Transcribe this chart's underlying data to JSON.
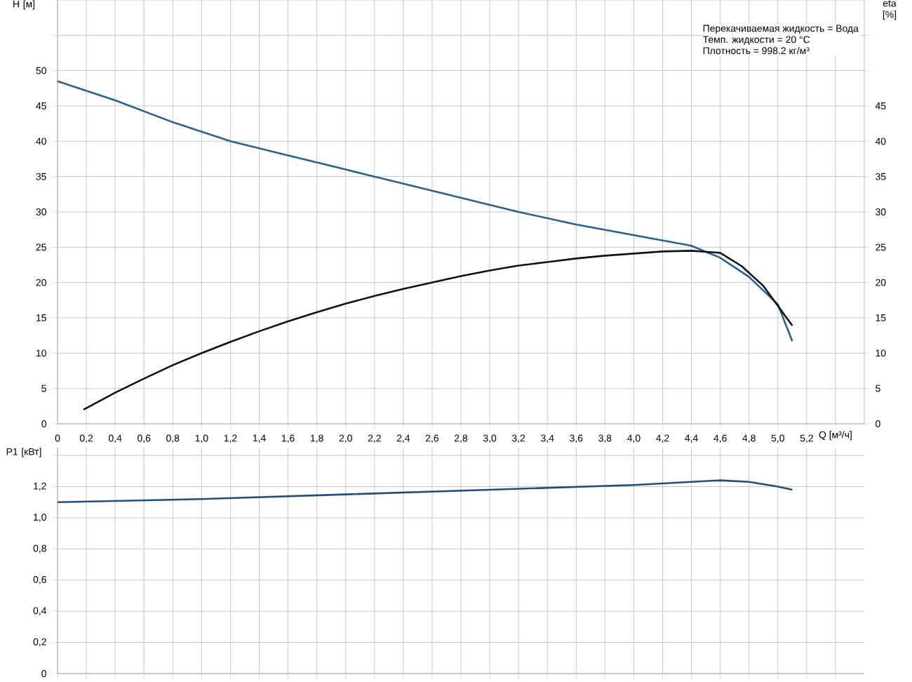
{
  "chart_data": [
    {
      "type": "line",
      "ylabel": "H [м]",
      "y2label": "eta [%]",
      "xlabel": "Q [м³/ч]",
      "annotations": [
        "Перекачиваемая жидкость = Вода",
        "Темп. жидкости = 20 °C",
        "Плотность = 998.2 кг/м³"
      ],
      "xlim": [
        0,
        5.6
      ],
      "xticks": [
        0,
        {
          "value": 0.2,
          "label": "0,2"
        },
        {
          "value": 0.4,
          "label": "0,4"
        },
        {
          "value": 0.6,
          "label": "0,6"
        },
        {
          "value": 0.8,
          "label": "0,8"
        },
        {
          "value": 1.0,
          "label": "1,0"
        },
        {
          "value": 1.2,
          "label": "1,2"
        },
        {
          "value": 1.4,
          "label": "1,4"
        },
        {
          "value": 1.6,
          "label": "1,6"
        },
        {
          "value": 1.8,
          "label": "1,8"
        },
        {
          "value": 2.0,
          "label": "2,0"
        },
        {
          "value": 2.2,
          "label": "2,2"
        },
        {
          "value": 2.4,
          "label": "2,4"
        },
        {
          "value": 2.6,
          "label": "2,6"
        },
        {
          "value": 2.8,
          "label": "2,8"
        },
        {
          "value": 3.0,
          "label": "3,0"
        },
        {
          "value": 3.2,
          "label": "3,2"
        },
        {
          "value": 3.4,
          "label": "3,4"
        },
        {
          "value": 3.6,
          "label": "3,6"
        },
        {
          "value": 3.8,
          "label": "3,8"
        },
        {
          "value": 4.0,
          "label": "4,0"
        },
        {
          "value": 4.2,
          "label": "4,2"
        },
        {
          "value": 4.4,
          "label": "4,4"
        },
        {
          "value": 4.6,
          "label": "4,6"
        },
        {
          "value": 4.8,
          "label": "4,8"
        },
        {
          "value": 5.0,
          "label": "5,0"
        },
        {
          "value": 5.2,
          "label": "5,2"
        },
        {
          "value": 5.4,
          "label": null
        }
      ],
      "ylim": [
        0,
        60
      ],
      "yticks": [
        0,
        5,
        10,
        15,
        20,
        25,
        30,
        35,
        40,
        45,
        50,
        {
          "value": 55,
          "label": null
        },
        {
          "value": 60,
          "label": null
        }
      ],
      "y2lim": [
        0,
        60
      ],
      "y2ticks": [
        0,
        5,
        10,
        15,
        20,
        25,
        30,
        35,
        40,
        45,
        {
          "value": 50,
          "label": null
        },
        {
          "value": 55,
          "label": null
        },
        {
          "value": 60,
          "label": null
        }
      ],
      "grid": true,
      "series": [
        {
          "color": "#2b5f8e",
          "x": [
            0,
            0.4,
            0.8,
            1.2,
            1.6,
            2.0,
            2.2,
            2.6,
            3.0,
            3.2,
            3.6,
            4.0,
            4.4,
            4.6,
            4.8,
            5.0,
            5.1
          ],
          "values": [
            48.5,
            45.8,
            42.7,
            40,
            38,
            36,
            35,
            33,
            31,
            30,
            28.2,
            26.7,
            25.2,
            23.5,
            20.8,
            16.9,
            11.7
          ]
        },
        {
          "color": "#111111",
          "axis": "y2",
          "x": [
            0.18,
            0.4,
            0.6,
            0.8,
            1.0,
            1.2,
            1.4,
            1.6,
            1.8,
            2.0,
            2.2,
            2.4,
            2.6,
            2.8,
            3.0,
            3.2,
            3.4,
            3.6,
            3.8,
            4.0,
            4.2,
            4.4,
            4.6,
            4.75,
            4.9,
            5.1
          ],
          "values": [
            2.0,
            4.4,
            6.4,
            8.3,
            10.0,
            11.6,
            13.1,
            14.5,
            15.8,
            17.0,
            18.1,
            19.1,
            20.0,
            20.9,
            21.7,
            22.4,
            22.9,
            23.4,
            23.8,
            24.1,
            24.4,
            24.5,
            24.2,
            22.3,
            19.5,
            13.9
          ]
        }
      ]
    },
    {
      "type": "line",
      "ylabel": "P1 [кВт]",
      "tick_labels": "y",
      "xlim": [
        0,
        5.6
      ],
      "xticks": [
        0,
        0.2,
        0.4,
        0.6,
        0.8,
        1.0,
        1.2,
        1.4,
        1.6,
        1.8,
        2.0,
        2.2,
        2.4,
        2.6,
        2.8,
        3.0,
        3.2,
        3.4,
        3.6,
        3.8,
        4.0,
        4.2,
        4.4,
        4.6,
        4.8,
        5.0,
        5.2,
        5.4
      ],
      "ylim": [
        0,
        1.45
      ],
      "yticks": [
        0,
        {
          "value": 0.2,
          "label": "0,2"
        },
        {
          "value": 0.4,
          "label": "0,4"
        },
        {
          "value": 0.6,
          "label": "0,6"
        },
        {
          "value": 0.8,
          "label": "0,8"
        },
        {
          "value": 1.0,
          "label": "1,0"
        },
        {
          "value": 1.2,
          "label": "1,2"
        },
        {
          "value": 1.4,
          "label": null
        }
      ],
      "grid": true,
      "series": [
        {
          "color": "#1f4e79",
          "x": [
            0,
            1.0,
            2.0,
            3.0,
            4.0,
            4.4,
            4.6,
            4.8,
            5.0,
            5.1
          ],
          "values": [
            1.1,
            1.12,
            1.15,
            1.18,
            1.21,
            1.23,
            1.24,
            1.23,
            1.2,
            1.18
          ]
        }
      ]
    }
  ]
}
